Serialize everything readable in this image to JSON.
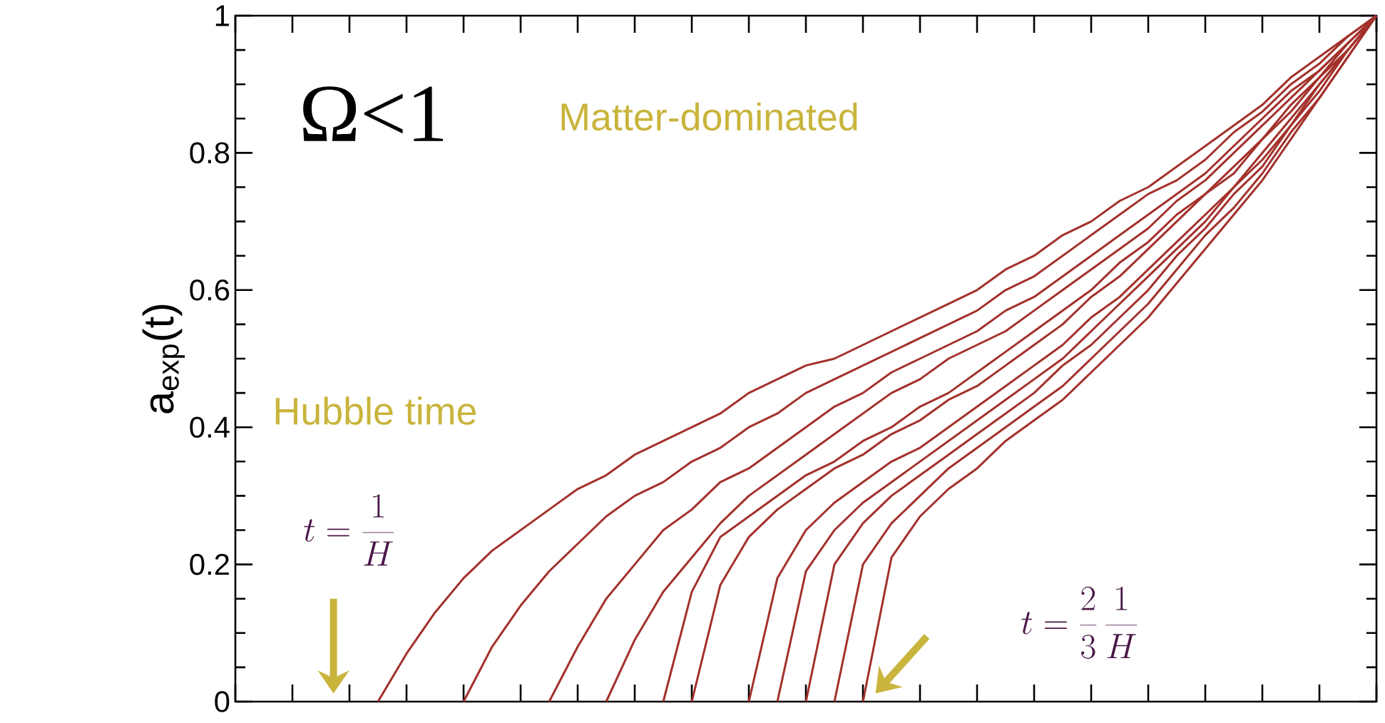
{
  "chart_data": {
    "type": "line",
    "ylabel": "a$_{exp}$(t)",
    "categories": [
      null,
      null,
      null,
      null,
      null,
      null,
      null,
      null,
      null,
      null,
      null,
      null,
      null,
      null,
      null,
      null,
      null,
      null,
      null,
      null,
      null,
      null,
      null,
      null,
      null,
      null,
      null,
      null,
      null,
      null,
      null,
      null,
      null,
      null,
      null,
      null,
      null,
      null,
      null,
      null,
      null
    ],
    "ylim": [
      0,
      1
    ],
    "yticks": [
      0,
      0.2,
      0.4,
      0.6,
      0.8,
      1
    ],
    "grid": false,
    "annotations": [
      "Ω<1",
      "Matter-dominated",
      "Hubble time",
      "t=\\frac{1}{H}",
      "t=\\frac{2}{3}\\,\\frac{1}{H}"
    ],
    "series": [
      {
        "color": "#a3312b",
        "values": [
          null,
          null,
          null,
          null,
          null,
          0,
          0.07,
          0.13,
          0.18,
          0.22,
          0.25,
          0.28,
          0.31,
          0.33,
          0.36,
          0.38,
          0.4,
          0.42,
          0.45,
          0.47,
          0.49,
          0.5,
          0.52,
          0.54,
          0.56,
          0.58,
          0.6,
          0.63,
          0.65,
          0.68,
          0.7,
          0.73,
          0.75,
          0.78,
          0.81,
          0.84,
          0.87,
          0.91,
          0.94,
          0.97,
          1
        ]
      },
      {
        "color": "#a3312b",
        "values": [
          null,
          null,
          null,
          null,
          null,
          null,
          null,
          null,
          0,
          0.08,
          0.14,
          0.19,
          0.23,
          0.27,
          0.3,
          0.32,
          0.35,
          0.37,
          0.4,
          0.42,
          0.45,
          0.47,
          0.49,
          0.51,
          0.53,
          0.55,
          0.57,
          0.6,
          0.62,
          0.65,
          0.68,
          0.71,
          0.74,
          0.76,
          0.79,
          0.83,
          0.86,
          0.9,
          0.93,
          0.97,
          1
        ]
      },
      {
        "color": "#a3312b",
        "values": [
          null,
          null,
          null,
          null,
          null,
          null,
          null,
          null,
          null,
          null,
          null,
          0,
          0.08,
          0.15,
          0.2,
          0.25,
          0.28,
          0.32,
          0.34,
          0.37,
          0.4,
          0.43,
          0.45,
          0.48,
          0.5,
          0.52,
          0.54,
          0.57,
          0.59,
          0.62,
          0.65,
          0.68,
          0.71,
          0.74,
          0.77,
          0.81,
          0.85,
          0.89,
          0.92,
          0.96,
          1
        ]
      },
      {
        "color": "#a3312b",
        "values": [
          null,
          null,
          null,
          null,
          null,
          null,
          null,
          null,
          null,
          null,
          null,
          null,
          null,
          0,
          0.09,
          0.16,
          0.21,
          0.26,
          0.3,
          0.33,
          0.36,
          0.39,
          0.42,
          0.45,
          0.47,
          0.5,
          0.52,
          0.54,
          0.57,
          0.6,
          0.63,
          0.66,
          0.69,
          0.73,
          0.76,
          0.8,
          0.84,
          0.88,
          0.92,
          0.96,
          1
        ]
      },
      {
        "color": "#a3312b",
        "values": [
          null,
          null,
          null,
          null,
          null,
          null,
          null,
          null,
          null,
          null,
          null,
          null,
          null,
          null,
          null,
          0,
          0.16,
          0.24,
          0.27,
          0.3,
          0.33,
          0.35,
          0.38,
          0.4,
          0.43,
          0.45,
          0.48,
          0.51,
          0.54,
          0.57,
          0.6,
          0.64,
          0.67,
          0.71,
          0.74,
          0.78,
          0.82,
          0.87,
          0.91,
          0.96,
          1
        ]
      },
      {
        "color": "#a3312b",
        "values": [
          null,
          null,
          null,
          null,
          null,
          null,
          null,
          null,
          null,
          null,
          null,
          null,
          null,
          null,
          null,
          null,
          0,
          0.17,
          0.24,
          0.28,
          0.31,
          0.34,
          0.36,
          0.39,
          0.41,
          0.44,
          0.46,
          0.49,
          0.52,
          0.55,
          0.59,
          0.62,
          0.66,
          0.7,
          0.74,
          0.77,
          0.82,
          0.86,
          0.91,
          0.95,
          1
        ]
      },
      {
        "color": "#a3312b",
        "values": [
          null,
          null,
          null,
          null,
          null,
          null,
          null,
          null,
          null,
          null,
          null,
          null,
          null,
          null,
          null,
          null,
          null,
          null,
          0,
          0.18,
          0.25,
          0.29,
          0.32,
          0.35,
          0.37,
          0.4,
          0.43,
          0.46,
          0.49,
          0.52,
          0.56,
          0.59,
          0.63,
          0.67,
          0.71,
          0.75,
          0.8,
          0.85,
          0.9,
          0.95,
          1
        ]
      },
      {
        "color": "#a3312b",
        "values": [
          null,
          null,
          null,
          null,
          null,
          null,
          null,
          null,
          null,
          null,
          null,
          null,
          null,
          null,
          null,
          null,
          null,
          null,
          null,
          0,
          0.19,
          0.25,
          0.29,
          0.32,
          0.35,
          0.38,
          0.41,
          0.44,
          0.47,
          0.5,
          0.54,
          0.58,
          0.62,
          0.66,
          0.7,
          0.75,
          0.79,
          0.84,
          0.9,
          0.95,
          1
        ]
      },
      {
        "color": "#a3312b",
        "values": [
          null,
          null,
          null,
          null,
          null,
          null,
          null,
          null,
          null,
          null,
          null,
          null,
          null,
          null,
          null,
          null,
          null,
          null,
          null,
          null,
          0,
          0.2,
          0.26,
          0.3,
          0.33,
          0.36,
          0.39,
          0.42,
          0.45,
          0.49,
          0.52,
          0.56,
          0.6,
          0.65,
          0.69,
          0.74,
          0.78,
          0.84,
          0.89,
          0.95,
          1
        ]
      },
      {
        "color": "#a3312b",
        "values": [
          null,
          null,
          null,
          null,
          null,
          null,
          null,
          null,
          null,
          null,
          null,
          null,
          null,
          null,
          null,
          null,
          null,
          null,
          null,
          null,
          null,
          0,
          0.2,
          0.26,
          0.3,
          0.34,
          0.37,
          0.4,
          0.43,
          0.46,
          0.5,
          0.54,
          0.58,
          0.63,
          0.68,
          0.72,
          0.77,
          0.83,
          0.88,
          0.94,
          1
        ]
      },
      {
        "color": "#a3312b",
        "values": [
          null,
          null,
          null,
          null,
          null,
          null,
          null,
          null,
          null,
          null,
          null,
          null,
          null,
          null,
          null,
          null,
          null,
          null,
          null,
          null,
          null,
          null,
          0,
          0.21,
          0.27,
          0.31,
          0.34,
          0.38,
          0.41,
          0.44,
          0.48,
          0.52,
          0.56,
          0.61,
          0.66,
          0.71,
          0.76,
          0.82,
          0.88,
          0.94,
          1
        ]
      }
    ]
  }
}
